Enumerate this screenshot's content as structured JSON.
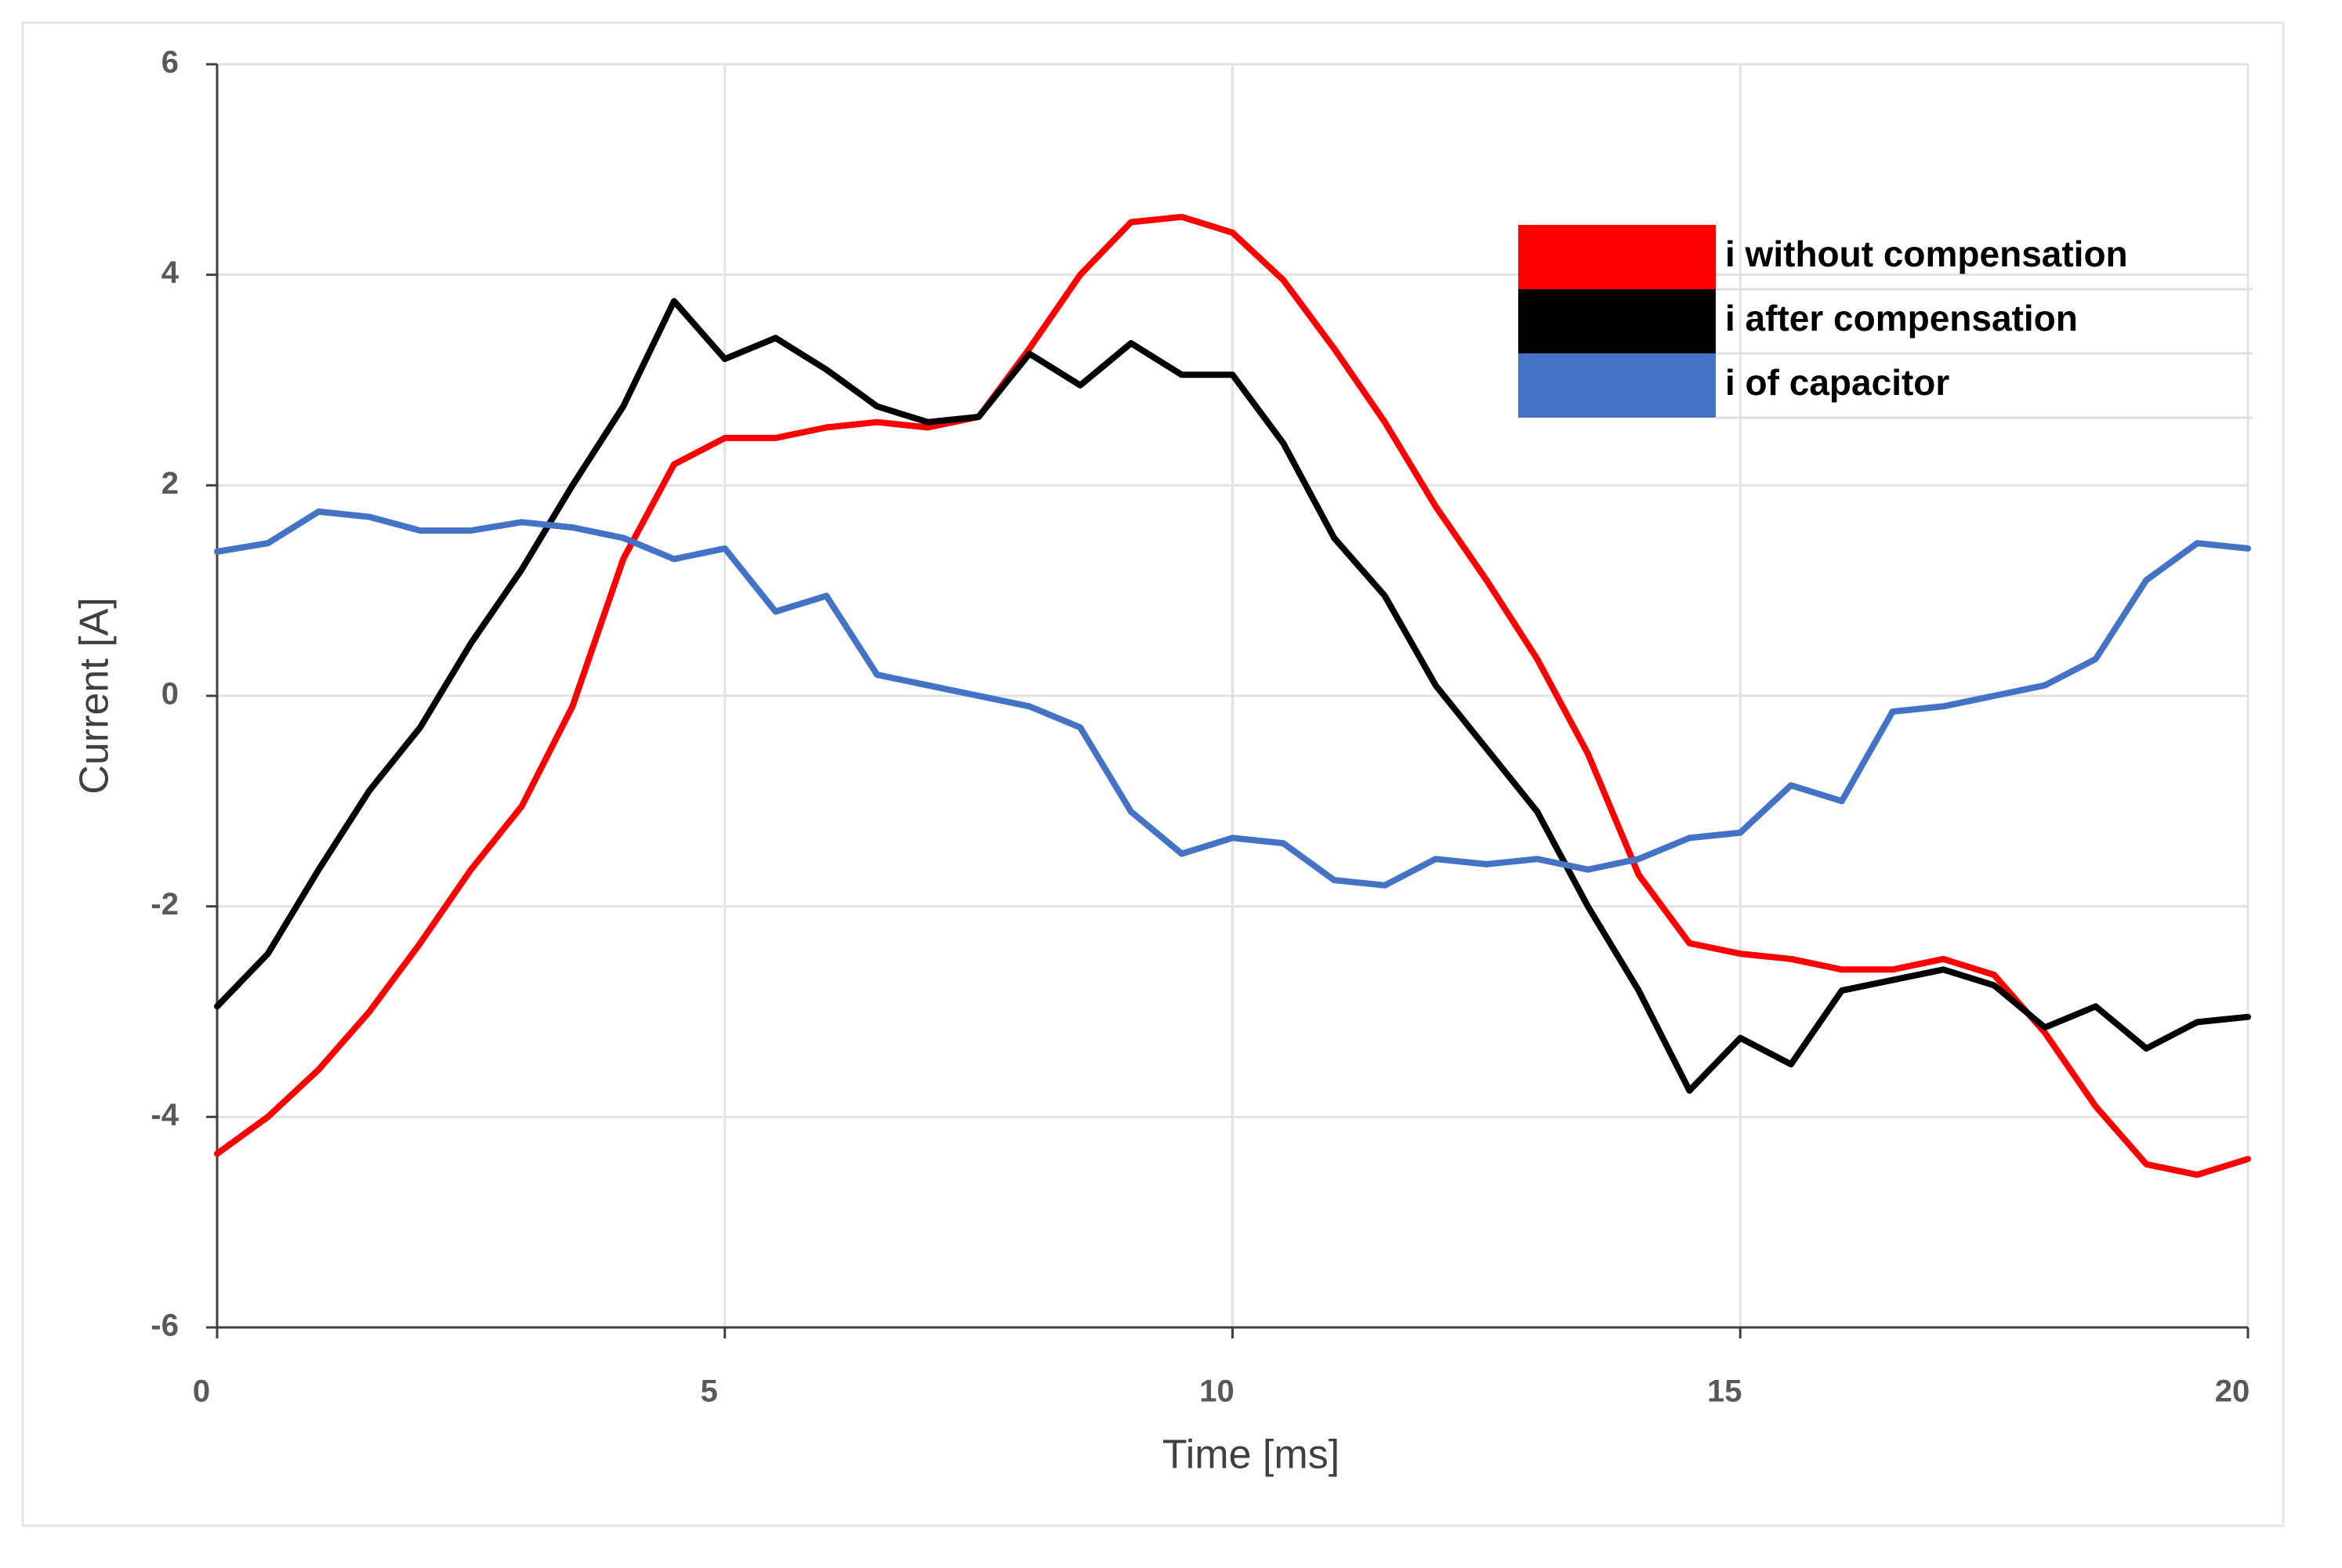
{
  "chart_data": {
    "type": "line",
    "xlabel": "Time [ms]",
    "ylabel": "Current [A]",
    "x": [
      0,
      0.5,
      1,
      1.5,
      2,
      2.5,
      3,
      3.5,
      4,
      4.5,
      5,
      5.5,
      6,
      6.5,
      7,
      7.5,
      8,
      8.5,
      9,
      9.5,
      10,
      10.5,
      11,
      11.5,
      12,
      12.5,
      13,
      13.5,
      14,
      14.5,
      15,
      15.5,
      16,
      16.5,
      17,
      17.5,
      18,
      18.5,
      19,
      19.5,
      20
    ],
    "series": [
      {
        "name": "i  without compensation",
        "color": "#ff0000",
        "values": [
          -4.35,
          -4.0,
          -3.55,
          -3.0,
          -2.35,
          -1.65,
          -1.05,
          -0.1,
          1.3,
          2.2,
          2.45,
          2.45,
          2.55,
          2.6,
          2.55,
          2.65,
          3.3,
          4.0,
          4.5,
          4.55,
          4.4,
          3.95,
          3.3,
          2.6,
          1.8,
          1.1,
          0.35,
          -0.55,
          -1.7,
          -2.35,
          -2.45,
          -2.5,
          -2.6,
          -2.6,
          -2.5,
          -2.65,
          -3.2,
          -3.9,
          -4.45,
          -4.55,
          -4.4
        ]
      },
      {
        "name": "i  after compensation",
        "color": "#000000",
        "values": [
          -2.95,
          -2.45,
          -1.65,
          -0.9,
          -0.3,
          0.5,
          1.2,
          2.0,
          2.75,
          3.75,
          3.2,
          3.4,
          3.1,
          2.75,
          2.6,
          2.65,
          3.25,
          2.95,
          3.35,
          3.05,
          3.05,
          2.4,
          1.5,
          0.95,
          0.1,
          -0.5,
          -1.1,
          -2.0,
          -2.8,
          -3.75,
          -3.25,
          -3.5,
          -2.8,
          -2.7,
          -2.6,
          -2.75,
          -3.15,
          -2.95,
          -3.35,
          -3.1,
          -3.05
        ]
      },
      {
        "name": "i  of capacitor",
        "color": "#4472c4",
        "values": [
          1.37,
          1.45,
          1.75,
          1.7,
          1.57,
          1.57,
          1.65,
          1.6,
          1.5,
          1.3,
          1.4,
          0.8,
          0.95,
          0.2,
          0.1,
          0.0,
          -0.1,
          -0.3,
          -1.1,
          -1.5,
          -1.35,
          -1.4,
          -1.75,
          -1.8,
          -1.55,
          -1.6,
          -1.55,
          -1.65,
          -1.55,
          -1.35,
          -1.3,
          -0.85,
          -1.0,
          -0.15,
          -0.1,
          0.0,
          0.1,
          0.35,
          1.1,
          1.45,
          1.4
        ]
      }
    ],
    "xlim": [
      0,
      20
    ],
    "xticks": [
      0,
      5,
      10,
      15,
      20
    ],
    "ylim": [
      -6,
      6
    ],
    "yticks": [
      -6,
      -4,
      -2,
      0,
      2,
      4,
      6
    ],
    "grid": true,
    "legend": "upper right"
  }
}
